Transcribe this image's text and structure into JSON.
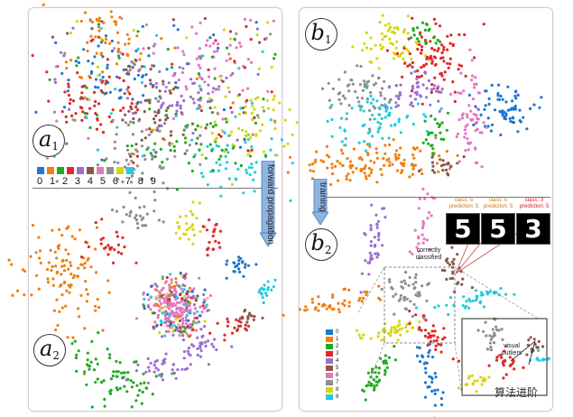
{
  "panels": {
    "left_top_badge": {
      "letter": "a",
      "sub": "1"
    },
    "left_bottom_badge": {
      "letter": "a",
      "sub": "2"
    },
    "right_top_badge": {
      "letter": "b",
      "sub": "1"
    },
    "right_bottom_badge": {
      "letter": "b",
      "sub": "2"
    }
  },
  "arrows": {
    "forward_label": "forward propagation",
    "training_label": "training"
  },
  "legend_horizontal": {
    "labels": "0 1 2 3 4 5 6 7 8 9"
  },
  "legend_vertical": {
    "labels": [
      "0",
      "1",
      "2",
      "3",
      "4",
      "5",
      "6",
      "7",
      "8",
      "9"
    ]
  },
  "colors": [
    "#1f77d0",
    "#f07f10",
    "#22aa22",
    "#e02828",
    "#9a6fd0",
    "#8c564b",
    "#e377c2",
    "#8e8e8e",
    "#d6d610",
    "#22ccdd"
  ],
  "samples": [
    {
      "class_label": "class: 5",
      "prediction_label": "prediction: 5",
      "digit": "5",
      "color": "#c47a1a"
    },
    {
      "class_label": "class: 5",
      "prediction_label": "prediction: 5",
      "digit": "5",
      "color": "#c47a1a"
    },
    {
      "class_label": "class: 3",
      "prediction_label": "prediction: 5",
      "digit": "3",
      "color": "#d02020"
    }
  ],
  "notes": {
    "correctly": "correctly classified",
    "visual_outliers": "visual outliers"
  },
  "watermark": "算法进阶"
}
